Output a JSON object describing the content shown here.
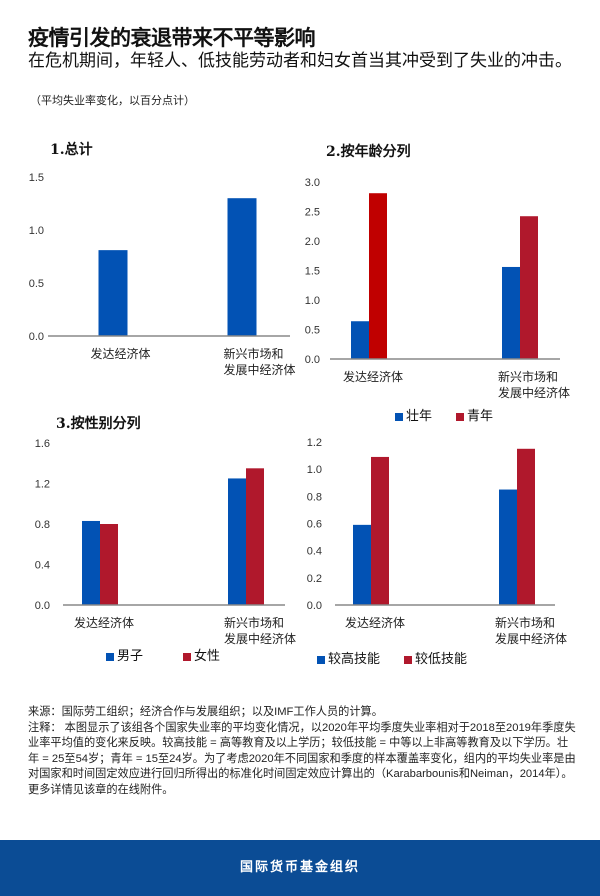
{
  "header": {
    "title": "疫情引发的衰退带来不平等影响",
    "subtitle": "在危机期间，年轻人、低技能劳动者和妇女首当其冲受到了失业的冲击。",
    "unit": "（平均失业率变化，以百分点计）"
  },
  "colors": {
    "blue": "#0252b4",
    "red": "#b0182c",
    "red_bright": "#c00000"
  },
  "chart_data": [
    {
      "type": "bar",
      "title": "1.总计",
      "categories": [
        "发达经济体",
        "新兴市场和\n发展中经济体"
      ],
      "ylim": [
        0,
        1.5
      ],
      "yticks": [
        "0.0",
        "0.5",
        "1.0",
        "1.5"
      ],
      "series": [
        {
          "values": [
            0.81,
            1.3
          ],
          "color": "#0252b4"
        }
      ],
      "grid": false
    },
    {
      "type": "bar",
      "title": "2.按年龄分列",
      "categories": [
        "发达经济体",
        "新兴市场和\n发展中经济体"
      ],
      "ylim": [
        0,
        3.0
      ],
      "yticks": [
        "0.0",
        "0.5",
        "1.0",
        "1.5",
        "2.0",
        "2.5",
        "3.0"
      ],
      "series": [
        {
          "name": "壮年",
          "values": [
            0.64,
            1.56
          ],
          "color": "#0252b4"
        },
        {
          "name": "青年",
          "values": [
            2.81,
            2.42
          ],
          "color": "#b0182c"
        }
      ],
      "legend": "bottom",
      "grid": false
    },
    {
      "type": "bar",
      "title": "3.按性别分列",
      "categories": [
        "发达经济体",
        "新兴市场和\n发展中经济体"
      ],
      "ylim": [
        0,
        1.6
      ],
      "yticks": [
        "0.0",
        "0.4",
        "0.8",
        "1.2",
        "1.6"
      ],
      "series": [
        {
          "name": "男子",
          "values": [
            0.83,
            1.25
          ],
          "color": "#0252b4"
        },
        {
          "name": "女性",
          "values": [
            0.8,
            1.35
          ],
          "color": "#b0182c"
        }
      ],
      "legend": "bottom",
      "grid": false
    },
    {
      "type": "bar",
      "title": "",
      "categories": [
        "发达经济体",
        "新兴市场和\n发展中经济体"
      ],
      "ylim": [
        0,
        1.2
      ],
      "yticks": [
        "0.0",
        "0.2",
        "0.4",
        "0.6",
        "0.8",
        "1.0",
        "1.2"
      ],
      "series": [
        {
          "name": "较高技能",
          "values": [
            0.59,
            0.85
          ],
          "color": "#0252b4"
        },
        {
          "name": "较低技能",
          "values": [
            1.09,
            1.15
          ],
          "color": "#b0182c"
        }
      ],
      "legend": "bottom",
      "grid": false
    }
  ],
  "notes": {
    "source": "来源：国际劳工组织；经济合作与发展组织；以及IMF工作人员的计算。",
    "note": "注释： 本图显示了该组各个国家失业率的平均变化情况，以2020年平均季度失业率相对于2018至2019年季度失业率平均值的变化来反映。较高技能 = 高等教育及以上学历；较低技能 = 中等以上非高等教育及以下学历。壮年 = 25至54岁；青年 = 15至24岁。为了考虑2020年不同国家和季度的样本覆盖率变化，组内的平均失业率是由对国家和时间固定效应进行回归所得出的标准化时间固定效应计算出的（Karabarbounis和Neiman，2014年）。更多详情见该章的在线附件。"
  },
  "footer": {
    "org": "国际货币基金组织"
  }
}
